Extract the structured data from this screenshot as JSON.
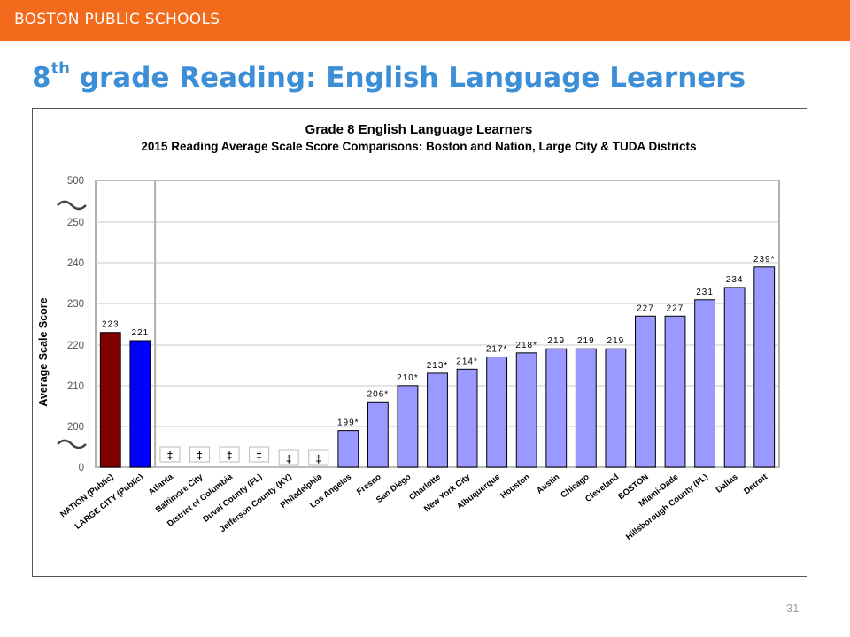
{
  "header": {
    "org": "BOSTON PUBLIC SCHOOLS"
  },
  "slide": {
    "title_num": "8",
    "title_sup": "th",
    "title_rest": " grade Reading: English Language Learners",
    "page_number": "31"
  },
  "colors": {
    "header_bar": "#f26a1b",
    "title": "#3c8fd7",
    "nation_bar": "#800000",
    "large_city_bar": "#0000ff",
    "district_bar": "#9999ff"
  },
  "chart_data": {
    "type": "bar",
    "title": "Grade 8 English Language Learners",
    "subtitle": "2015 Reading Average Scale Score Comparisons: Boston and Nation, Large City & TUDA Districts",
    "ylabel": "Average Scale Score",
    "y_ticks": [
      "500",
      "250",
      "240",
      "230",
      "220",
      "210",
      "200",
      "0"
    ],
    "y_axis_breaks": true,
    "ylim": [
      200,
      250
    ],
    "grid": true,
    "categories": [
      "NATION (Public)",
      "LARGE CITY (Public)",
      "Atlanta",
      "Baltimore City",
      "District of Columbia",
      "Duval County (FL)",
      "Jefferson County (KY)",
      "Philadelphia",
      "Los Angeles",
      "Fresno",
      "San Diego",
      "Charlotte",
      "New York City",
      "Albuquerque",
      "Houston",
      "Austin",
      "Chicago",
      "Cleveland",
      "BOSTON",
      "Miami-Dade",
      "Hillsborough County (FL)",
      "Dallas",
      "Detroit"
    ],
    "values": [
      223,
      221,
      null,
      null,
      null,
      null,
      null,
      null,
      199,
      206,
      210,
      213,
      214,
      217,
      218,
      219,
      219,
      219,
      227,
      227,
      231,
      234,
      239
    ],
    "data_labels": [
      "223",
      "221",
      "‡",
      "‡",
      "‡",
      "‡",
      "‡",
      "‡",
      "199*",
      "206*",
      "210*",
      "213*",
      "214*",
      "217*",
      "218*",
      "219",
      "219",
      "219",
      "227",
      "227",
      "231",
      "234",
      "239*"
    ],
    "bar_colors": [
      "nation",
      "large_city",
      "district",
      "district",
      "district",
      "district",
      "district",
      "district",
      "district",
      "district",
      "district",
      "district",
      "district",
      "district",
      "district",
      "district",
      "district",
      "district",
      "district",
      "district",
      "district",
      "district",
      "district"
    ]
  }
}
